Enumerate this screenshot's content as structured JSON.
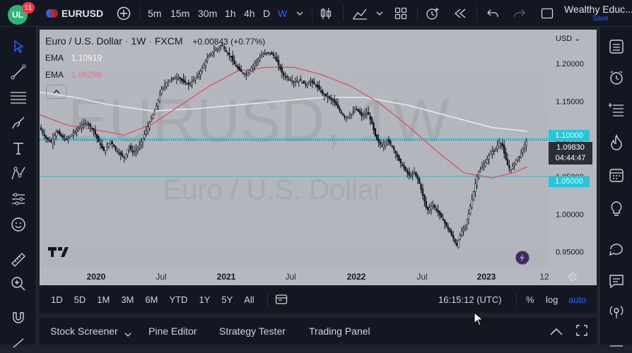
{
  "topbar": {
    "notification_count": "11",
    "symbol": "EURUSD",
    "intervals": [
      "5m",
      "15m",
      "30m",
      "1h",
      "4h",
      "D",
      "W"
    ],
    "active_interval": "W",
    "account_name": "Wealthy Educ...",
    "save_label": "Save"
  },
  "legend": {
    "symbol_name": "Euro / U.S. Dollar",
    "interval": "1W",
    "exchange": "FXCM",
    "change": "+0.00843 (+0.77%)",
    "ema1_label": "EMA",
    "ema1_value": "1.10919",
    "ema2_label": "EMA",
    "ema2_value": "1.06299",
    "currency": "USD"
  },
  "watermark": {
    "line1": "EURUSD, 1W",
    "line2": "Euro / U.S. Dollar"
  },
  "price_labels": {
    "level_upper": "1.10000",
    "current_price": "1.09830",
    "countdown": "04:44:47",
    "level_lower": "1.05000"
  },
  "chart_data": {
    "type": "candlestick",
    "x_tick_labels": [
      "2020",
      "Jul",
      "2021",
      "Jul",
      "2022",
      "Jul",
      "2023",
      "12"
    ],
    "y_tick_labels": [
      "1.20000",
      "1.15000",
      "1.10000",
      "1.05000",
      "1.00000",
      "0.95000"
    ],
    "ylim": [
      0.93,
      1.245
    ],
    "horizontal_levels": [
      1.1,
      1.05
    ],
    "current_price": 1.0983,
    "price_path": [
      [
        0,
        1.115
      ],
      [
        8,
        1.102
      ],
      [
        16,
        1.095
      ],
      [
        24,
        1.11
      ],
      [
        36,
        1.098
      ],
      [
        46,
        1.106
      ],
      [
        56,
        1.115
      ],
      [
        66,
        1.122
      ],
      [
        76,
        1.112
      ],
      [
        84,
        1.095
      ],
      [
        92,
        1.082
      ],
      [
        100,
        1.098
      ],
      [
        108,
        1.085
      ],
      [
        116,
        1.078
      ],
      [
        120,
        1.075
      ],
      [
        126,
        1.09
      ],
      [
        132,
        1.082
      ],
      [
        140,
        1.088
      ],
      [
        148,
        1.105
      ],
      [
        156,
        1.122
      ],
      [
        164,
        1.14
      ],
      [
        172,
        1.165
      ],
      [
        180,
        1.175
      ],
      [
        188,
        1.18
      ],
      [
        196,
        1.182
      ],
      [
        204,
        1.175
      ],
      [
        212,
        1.172
      ],
      [
        220,
        1.18
      ],
      [
        228,
        1.19
      ],
      [
        236,
        1.205
      ],
      [
        244,
        1.215
      ],
      [
        252,
        1.22
      ],
      [
        258,
        1.225
      ],
      [
        264,
        1.215
      ],
      [
        270,
        1.21
      ],
      [
        276,
        1.198
      ],
      [
        284,
        1.19
      ],
      [
        292,
        1.185
      ],
      [
        300,
        1.195
      ],
      [
        308,
        1.205
      ],
      [
        316,
        1.212
      ],
      [
        324,
        1.215
      ],
      [
        332,
        1.21
      ],
      [
        338,
        1.198
      ],
      [
        344,
        1.185
      ],
      [
        352,
        1.18
      ],
      [
        360,
        1.175
      ],
      [
        368,
        1.178
      ],
      [
        376,
        1.172
      ],
      [
        384,
        1.176
      ],
      [
        392,
        1.17
      ],
      [
        400,
        1.16
      ],
      [
        408,
        1.155
      ],
      [
        416,
        1.15
      ],
      [
        424,
        1.138
      ],
      [
        432,
        1.128
      ],
      [
        440,
        1.132
      ],
      [
        448,
        1.14
      ],
      [
        456,
        1.13
      ],
      [
        464,
        1.135
      ],
      [
        470,
        1.12
      ],
      [
        476,
        1.1
      ],
      [
        484,
        1.09
      ],
      [
        492,
        1.098
      ],
      [
        500,
        1.088
      ],
      [
        508,
        1.072
      ],
      [
        516,
        1.06
      ],
      [
        524,
        1.05
      ],
      [
        530,
        1.055
      ],
      [
        536,
        1.045
      ],
      [
        542,
        1.025
      ],
      [
        548,
        1.005
      ],
      [
        556,
        1.012
      ],
      [
        564,
        1.002
      ],
      [
        572,
        0.99
      ],
      [
        578,
        0.98
      ],
      [
        584,
        0.97
      ],
      [
        590,
        0.958
      ],
      [
        596,
        0.975
      ],
      [
        602,
        0.985
      ],
      [
        608,
        1.005
      ],
      [
        614,
        1.03
      ],
      [
        620,
        1.055
      ],
      [
        626,
        1.062
      ],
      [
        632,
        1.07
      ],
      [
        638,
        1.082
      ],
      [
        644,
        1.085
      ],
      [
        650,
        1.095
      ],
      [
        654,
        1.093
      ],
      [
        658,
        1.078
      ],
      [
        662,
        1.065
      ],
      [
        666,
        1.058
      ],
      [
        670,
        1.065
      ],
      [
        676,
        1.075
      ],
      [
        680,
        1.078
      ],
      [
        686,
        1.092
      ],
      [
        690,
        1.099
      ]
    ],
    "ema_slow_path": [
      [
        0,
        1.162
      ],
      [
        50,
        1.155
      ],
      [
        100,
        1.145
      ],
      [
        160,
        1.137
      ],
      [
        220,
        1.14
      ],
      [
        280,
        1.145
      ],
      [
        340,
        1.15
      ],
      [
        400,
        1.155
      ],
      [
        460,
        1.155
      ],
      [
        520,
        1.145
      ],
      [
        580,
        1.13
      ],
      [
        640,
        1.115
      ],
      [
        690,
        1.11
      ]
    ],
    "ema_fast_path": [
      [
        0,
        1.132
      ],
      [
        40,
        1.118
      ],
      [
        80,
        1.112
      ],
      [
        120,
        1.105
      ],
      [
        160,
        1.12
      ],
      [
        200,
        1.145
      ],
      [
        240,
        1.17
      ],
      [
        280,
        1.19
      ],
      [
        320,
        1.195
      ],
      [
        360,
        1.195
      ],
      [
        400,
        1.185
      ],
      [
        440,
        1.17
      ],
      [
        480,
        1.148
      ],
      [
        520,
        1.118
      ],
      [
        560,
        1.085
      ],
      [
        600,
        1.055
      ],
      [
        640,
        1.048
      ],
      [
        670,
        1.055
      ],
      [
        690,
        1.063
      ]
    ]
  },
  "timebar": {
    "ranges": [
      "1D",
      "5D",
      "1M",
      "3M",
      "6M",
      "YTD",
      "1Y",
      "5Y",
      "All"
    ],
    "clock": "16:15:12 (UTC)",
    "percent_label": "%",
    "log_label": "log",
    "auto_label": "auto"
  },
  "bottombar": {
    "tabs": [
      "Stock Screener",
      "Pine Editor",
      "Strategy Tester",
      "Trading Panel"
    ]
  },
  "colors": {
    "accent": "#2962ff",
    "level_line": "#26c6da",
    "ema_fast": "#d4526e",
    "ema_slow": "#e8e8e8",
    "ema2_text": "#e57399"
  }
}
